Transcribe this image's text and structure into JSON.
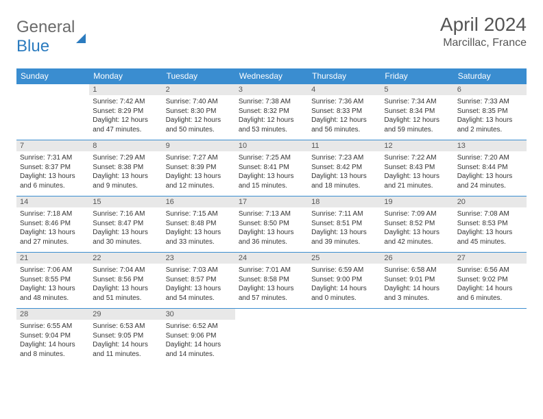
{
  "logo": {
    "part1": "General",
    "part2": "Blue"
  },
  "title": "April 2024",
  "location": "Marcillac, France",
  "colors": {
    "header_bg": "#3a8dd0",
    "header_fg": "#ffffff",
    "daynum_bg": "#e8e8e8",
    "text": "#333333",
    "rule": "#3a8dd0",
    "logo_gray": "#6a6a6a",
    "logo_blue": "#2b7bbf"
  },
  "daysOfWeek": [
    "Sunday",
    "Monday",
    "Tuesday",
    "Wednesday",
    "Thursday",
    "Friday",
    "Saturday"
  ],
  "weeks": [
    [
      null,
      {
        "n": "1",
        "sr": "7:42 AM",
        "ss": "8:29 PM",
        "dl": "12 hours and 47 minutes."
      },
      {
        "n": "2",
        "sr": "7:40 AM",
        "ss": "8:30 PM",
        "dl": "12 hours and 50 minutes."
      },
      {
        "n": "3",
        "sr": "7:38 AM",
        "ss": "8:32 PM",
        "dl": "12 hours and 53 minutes."
      },
      {
        "n": "4",
        "sr": "7:36 AM",
        "ss": "8:33 PM",
        "dl": "12 hours and 56 minutes."
      },
      {
        "n": "5",
        "sr": "7:34 AM",
        "ss": "8:34 PM",
        "dl": "12 hours and 59 minutes."
      },
      {
        "n": "6",
        "sr": "7:33 AM",
        "ss": "8:35 PM",
        "dl": "13 hours and 2 minutes."
      }
    ],
    [
      {
        "n": "7",
        "sr": "7:31 AM",
        "ss": "8:37 PM",
        "dl": "13 hours and 6 minutes."
      },
      {
        "n": "8",
        "sr": "7:29 AM",
        "ss": "8:38 PM",
        "dl": "13 hours and 9 minutes."
      },
      {
        "n": "9",
        "sr": "7:27 AM",
        "ss": "8:39 PM",
        "dl": "13 hours and 12 minutes."
      },
      {
        "n": "10",
        "sr": "7:25 AM",
        "ss": "8:41 PM",
        "dl": "13 hours and 15 minutes."
      },
      {
        "n": "11",
        "sr": "7:23 AM",
        "ss": "8:42 PM",
        "dl": "13 hours and 18 minutes."
      },
      {
        "n": "12",
        "sr": "7:22 AM",
        "ss": "8:43 PM",
        "dl": "13 hours and 21 minutes."
      },
      {
        "n": "13",
        "sr": "7:20 AM",
        "ss": "8:44 PM",
        "dl": "13 hours and 24 minutes."
      }
    ],
    [
      {
        "n": "14",
        "sr": "7:18 AM",
        "ss": "8:46 PM",
        "dl": "13 hours and 27 minutes."
      },
      {
        "n": "15",
        "sr": "7:16 AM",
        "ss": "8:47 PM",
        "dl": "13 hours and 30 minutes."
      },
      {
        "n": "16",
        "sr": "7:15 AM",
        "ss": "8:48 PM",
        "dl": "13 hours and 33 minutes."
      },
      {
        "n": "17",
        "sr": "7:13 AM",
        "ss": "8:50 PM",
        "dl": "13 hours and 36 minutes."
      },
      {
        "n": "18",
        "sr": "7:11 AM",
        "ss": "8:51 PM",
        "dl": "13 hours and 39 minutes."
      },
      {
        "n": "19",
        "sr": "7:09 AM",
        "ss": "8:52 PM",
        "dl": "13 hours and 42 minutes."
      },
      {
        "n": "20",
        "sr": "7:08 AM",
        "ss": "8:53 PM",
        "dl": "13 hours and 45 minutes."
      }
    ],
    [
      {
        "n": "21",
        "sr": "7:06 AM",
        "ss": "8:55 PM",
        "dl": "13 hours and 48 minutes."
      },
      {
        "n": "22",
        "sr": "7:04 AM",
        "ss": "8:56 PM",
        "dl": "13 hours and 51 minutes."
      },
      {
        "n": "23",
        "sr": "7:03 AM",
        "ss": "8:57 PM",
        "dl": "13 hours and 54 minutes."
      },
      {
        "n": "24",
        "sr": "7:01 AM",
        "ss": "8:58 PM",
        "dl": "13 hours and 57 minutes."
      },
      {
        "n": "25",
        "sr": "6:59 AM",
        "ss": "9:00 PM",
        "dl": "14 hours and 0 minutes."
      },
      {
        "n": "26",
        "sr": "6:58 AM",
        "ss": "9:01 PM",
        "dl": "14 hours and 3 minutes."
      },
      {
        "n": "27",
        "sr": "6:56 AM",
        "ss": "9:02 PM",
        "dl": "14 hours and 6 minutes."
      }
    ],
    [
      {
        "n": "28",
        "sr": "6:55 AM",
        "ss": "9:04 PM",
        "dl": "14 hours and 8 minutes."
      },
      {
        "n": "29",
        "sr": "6:53 AM",
        "ss": "9:05 PM",
        "dl": "14 hours and 11 minutes."
      },
      {
        "n": "30",
        "sr": "6:52 AM",
        "ss": "9:06 PM",
        "dl": "14 hours and 14 minutes."
      },
      null,
      null,
      null,
      null
    ]
  ],
  "labels": {
    "sunrise": "Sunrise: ",
    "sunset": "Sunset: ",
    "daylight": "Daylight: "
  }
}
